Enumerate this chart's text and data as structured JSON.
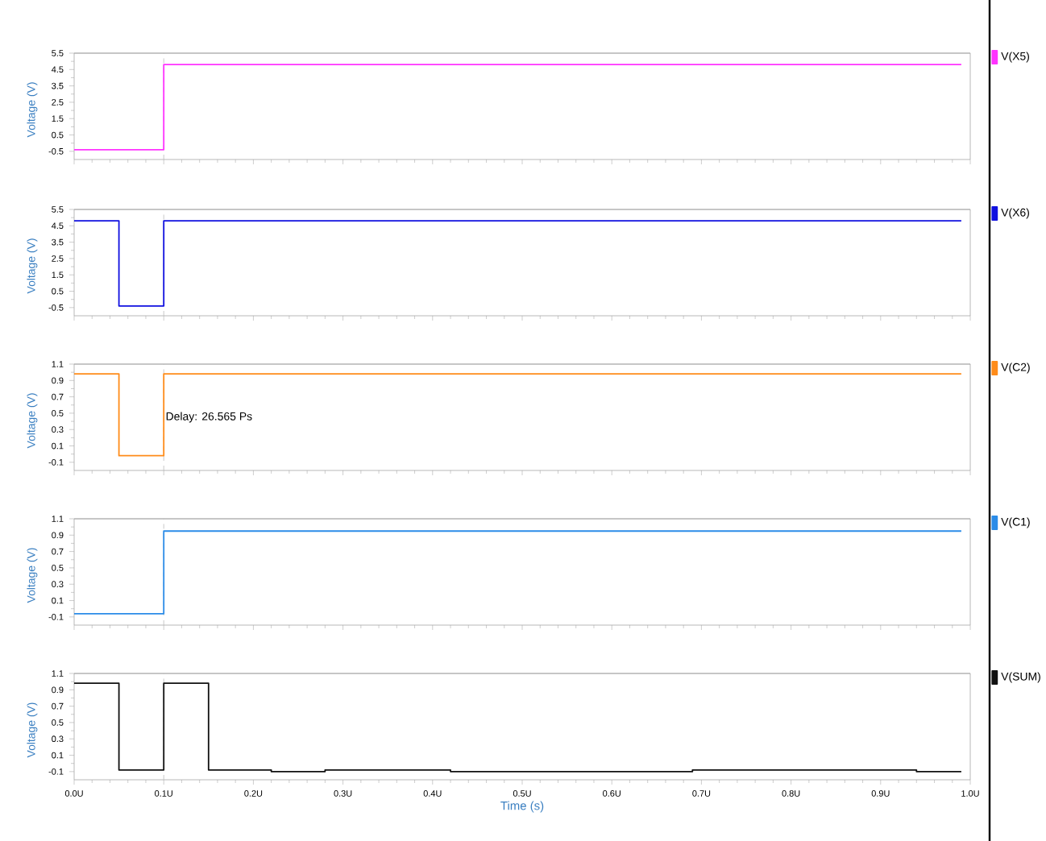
{
  "chart_data": [
    {
      "type": "step",
      "ylabel": "Voltage (V)",
      "legend": "right",
      "tick_labels": "y",
      "xlim": [
        0,
        1
      ],
      "xticks": [
        {
          "value": 0,
          "label": null
        },
        {
          "value": 0.1,
          "label": null
        },
        {
          "value": 0.2,
          "label": null
        },
        {
          "value": 0.3,
          "label": null
        },
        {
          "value": 0.4,
          "label": null
        },
        {
          "value": 0.5,
          "label": null
        },
        {
          "value": 0.6,
          "label": null
        },
        {
          "value": 0.7,
          "label": null
        },
        {
          "value": 0.8,
          "label": null
        },
        {
          "value": 0.9,
          "label": null
        },
        {
          "value": 1,
          "label": null
        }
      ],
      "ylim": [
        -1,
        5.5
      ],
      "yticks": [
        -0.5,
        0.5,
        1.5,
        2.5,
        3.5,
        4.5,
        5.5
      ],
      "ref_lines": [
        {
          "axis": "x",
          "value": 0.1,
          "line_style": "dashed",
          "color": "#bbbbbb"
        }
      ],
      "series": [
        {
          "name": "V(X5)",
          "color": "#ff33ff",
          "x": [
            0,
            0.1,
            0.99
          ],
          "values": [
            -0.4,
            4.8,
            4.8
          ]
        }
      ]
    },
    {
      "type": "step",
      "ylabel": "Voltage (V)",
      "legend": "right",
      "tick_labels": "y",
      "xlim": [
        0,
        1
      ],
      "xticks": [
        {
          "value": 0,
          "label": null
        },
        {
          "value": 0.1,
          "label": null
        },
        {
          "value": 0.2,
          "label": null
        },
        {
          "value": 0.3,
          "label": null
        },
        {
          "value": 0.4,
          "label": null
        },
        {
          "value": 0.5,
          "label": null
        },
        {
          "value": 0.6,
          "label": null
        },
        {
          "value": 0.7,
          "label": null
        },
        {
          "value": 0.8,
          "label": null
        },
        {
          "value": 0.9,
          "label": null
        },
        {
          "value": 1,
          "label": null
        }
      ],
      "ylim": [
        -1,
        5.5
      ],
      "yticks": [
        -0.5,
        0.5,
        1.5,
        2.5,
        3.5,
        4.5,
        5.5
      ],
      "ref_lines": [
        {
          "axis": "x",
          "value": 0.1,
          "line_style": "dashed",
          "color": "#bbbbbb"
        }
      ],
      "series": [
        {
          "name": "V(X6)",
          "color": "#1010e0",
          "x": [
            0,
            0.05,
            0.1,
            0.99
          ],
          "values": [
            4.8,
            -0.4,
            4.8,
            4.8
          ]
        }
      ]
    },
    {
      "type": "step",
      "ylabel": "Voltage (V)",
      "legend": "right",
      "tick_labels": "y",
      "xlim": [
        0,
        1
      ],
      "xticks": [
        {
          "value": 0,
          "label": null
        },
        {
          "value": 0.1,
          "label": null
        },
        {
          "value": 0.2,
          "label": null
        },
        {
          "value": 0.3,
          "label": null
        },
        {
          "value": 0.4,
          "label": null
        },
        {
          "value": 0.5,
          "label": null
        },
        {
          "value": 0.6,
          "label": null
        },
        {
          "value": 0.7,
          "label": null
        },
        {
          "value": 0.8,
          "label": null
        },
        {
          "value": 0.9,
          "label": null
        },
        {
          "value": 1,
          "label": null
        }
      ],
      "ylim": [
        -0.2,
        1.1
      ],
      "yticks": [
        -0.1,
        0.1,
        0.3,
        0.5,
        0.7,
        0.9,
        1.1
      ],
      "ref_lines": [
        {
          "axis": "x",
          "value": 0.1,
          "line_style": "dashed",
          "color": "#bbbbbb"
        }
      ],
      "annotations": [
        {
          "text": "Delay: 26.565 Ps",
          "x": 0.1,
          "y": 0.45
        }
      ],
      "series": [
        {
          "name": "V(C2)",
          "color": "#ff8c1a",
          "x": [
            0,
            0.05,
            0.1,
            0.99
          ],
          "values": [
            0.98,
            -0.02,
            0.98,
            0.98
          ]
        }
      ]
    },
    {
      "type": "step",
      "ylabel": "Voltage (V)",
      "legend": "right",
      "tick_labels": "y",
      "xlim": [
        0,
        1
      ],
      "xticks": [
        {
          "value": 0,
          "label": null
        },
        {
          "value": 0.1,
          "label": null
        },
        {
          "value": 0.2,
          "label": null
        },
        {
          "value": 0.3,
          "label": null
        },
        {
          "value": 0.4,
          "label": null
        },
        {
          "value": 0.5,
          "label": null
        },
        {
          "value": 0.6,
          "label": null
        },
        {
          "value": 0.7,
          "label": null
        },
        {
          "value": 0.8,
          "label": null
        },
        {
          "value": 0.9,
          "label": null
        },
        {
          "value": 1,
          "label": null
        }
      ],
      "ylim": [
        -0.2,
        1.1
      ],
      "yticks": [
        -0.1,
        0.1,
        0.3,
        0.5,
        0.7,
        0.9,
        1.1
      ],
      "ref_lines": [
        {
          "axis": "x",
          "value": 0.1,
          "line_style": "dashed",
          "color": "#bbbbbb"
        }
      ],
      "series": [
        {
          "name": "V(C1)",
          "color": "#2b8ce8",
          "x": [
            0,
            0.1,
            0.99
          ],
          "values": [
            -0.06,
            0.95,
            0.95
          ]
        }
      ]
    },
    {
      "type": "step",
      "ylabel": "Voltage (V)",
      "xlabel": "Time (s)",
      "legend": "right",
      "xlim": [
        0,
        1
      ],
      "xticks": [
        {
          "value": 0,
          "label": "0.0U"
        },
        {
          "value": 0.1,
          "label": "0.1U"
        },
        {
          "value": 0.2,
          "label": "0.2U"
        },
        {
          "value": 0.3,
          "label": "0.3U"
        },
        {
          "value": 0.4,
          "label": "0.4U"
        },
        {
          "value": 0.5,
          "label": "0.5U"
        },
        {
          "value": 0.6,
          "label": "0.6U"
        },
        {
          "value": 0.7,
          "label": "0.7U"
        },
        {
          "value": 0.8,
          "label": "0.8U"
        },
        {
          "value": 0.9,
          "label": "0.9U"
        },
        {
          "value": 1,
          "label": "1.0U"
        }
      ],
      "ylim": [
        -0.2,
        1.1
      ],
      "yticks": [
        -0.1,
        0.1,
        0.3,
        0.5,
        0.7,
        0.9,
        1.1
      ],
      "ref_lines": [
        {
          "axis": "x",
          "value": 0.1,
          "line_style": "dashed",
          "color": "#bbbbbb"
        }
      ],
      "series": [
        {
          "name": "V(SUM)",
          "color": "#111111",
          "x": [
            0,
            0.05,
            0.1,
            0.15,
            0.18,
            0.22,
            0.28,
            0.42,
            0.69,
            0.94,
            0.99
          ],
          "values": [
            0.98,
            -0.08,
            0.98,
            -0.08,
            -0.08,
            -0.1,
            -0.08,
            -0.1,
            -0.08,
            -0.1,
            -0.1
          ]
        }
      ]
    }
  ]
}
